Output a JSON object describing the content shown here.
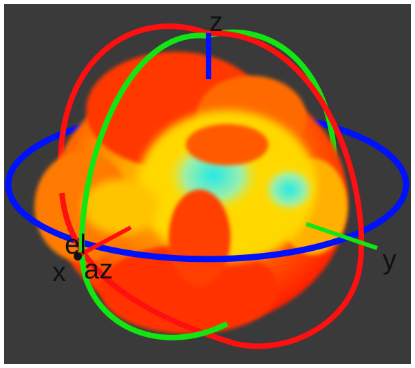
{
  "plot": {
    "background_color": "#3a3a3a",
    "ring_colors": {
      "azimuth_ring": "#0011ff",
      "elevation_ring_xz": "#ff1010",
      "elevation_ring_yz": "#12e612"
    },
    "axis_colors": {
      "x": "#ff1010",
      "y": "#12e612",
      "z": "#0011ff"
    },
    "axis_labels": {
      "x": "x",
      "y": "y",
      "z": "z"
    },
    "angle_labels": {
      "elevation": "el",
      "azimuth": "az"
    },
    "pattern_colors": {
      "low": "#22e8e8",
      "mid_low": "#d8f050",
      "mid": "#ffe000",
      "mid_high": "#ff9a00",
      "high": "#ff2a00"
    },
    "icons": [
      "radiation-pattern-3d",
      "coordinate-axes"
    ]
  }
}
